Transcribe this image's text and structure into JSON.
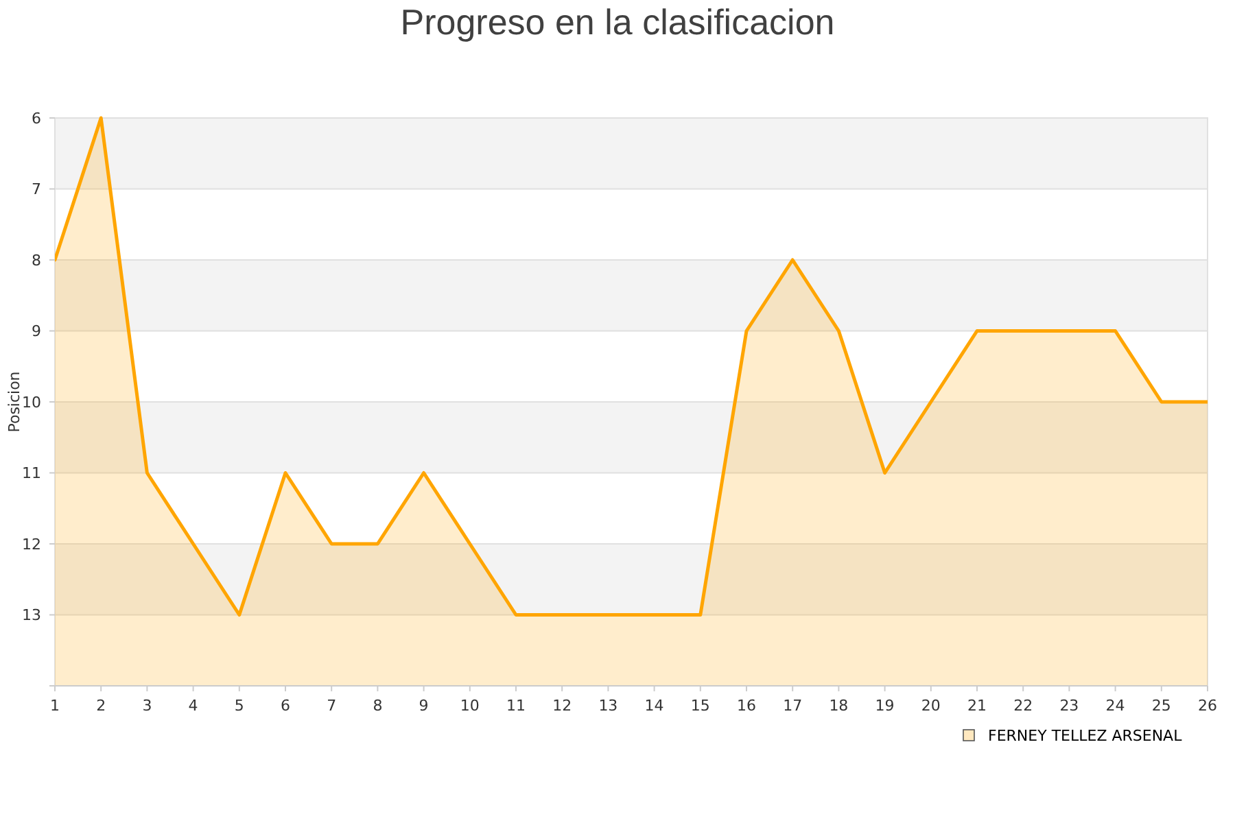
{
  "chart_data": {
    "type": "area",
    "title": "Progreso en la clasificacion",
    "ylabel": "Posicion",
    "x": [
      1,
      2,
      3,
      4,
      5,
      6,
      7,
      8,
      9,
      10,
      11,
      12,
      13,
      14,
      15,
      16,
      17,
      18,
      19,
      20,
      21,
      22,
      23,
      24,
      25,
      26
    ],
    "series": [
      {
        "name": "FERNEY TELLEZ ARSENAL",
        "color": "#ffa500",
        "values": [
          8,
          6,
          11,
          12,
          13,
          11,
          12,
          12,
          11,
          12,
          13,
          13,
          13,
          13,
          13,
          9,
          8,
          9,
          11,
          10,
          9,
          9,
          9,
          9,
          10,
          10
        ]
      }
    ],
    "xlim": [
      1,
      26
    ],
    "xticks": [
      1,
      2,
      3,
      4,
      5,
      6,
      7,
      8,
      9,
      10,
      11,
      12,
      13,
      14,
      15,
      16,
      17,
      18,
      19,
      20,
      21,
      22,
      23,
      24,
      25,
      26
    ],
    "ylim": [
      14,
      6
    ],
    "yticks": [
      6,
      7,
      8,
      9,
      10,
      11,
      12,
      13,
      {
        "value": 14,
        "label": null
      }
    ],
    "grid": "y",
    "legend": "bottom right",
    "marker": "none",
    "line_style": "solid"
  }
}
